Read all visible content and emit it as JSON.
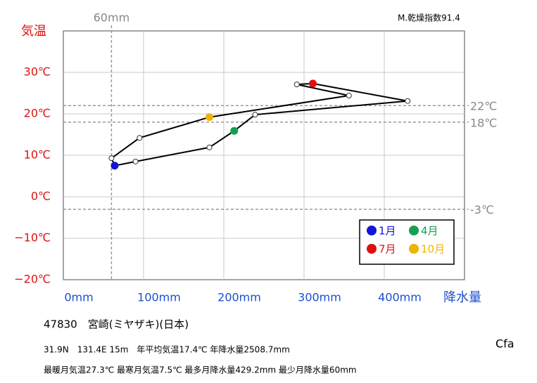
{
  "chart_data": {
    "type": "line",
    "title": "47830　宮崎(ミヤザキ)(日本)",
    "subtitle": "31.9N　131.4E 15m　年平均気温17.4℃ 年降水量2508.7mm",
    "notes": [
      "最暖月気温27.3℃ 最寒月気温7.5℃ 最多月降水量429.2mm 最少月降水量60mm"
    ],
    "index_label": "M.乾燥指数91.4",
    "climate_class": "Cfa",
    "xlabel": "降水量",
    "ylabel": "気温",
    "x": [
      64,
      90,
      182,
      213,
      239,
      429.2,
      311,
      291,
      356,
      182,
      95,
      60
    ],
    "y": [
      7.5,
      8.5,
      11.9,
      15.9,
      19.8,
      23.1,
      27.3,
      27.1,
      24.4,
      19.2,
      14.2,
      9.3
    ],
    "point_colors": [
      "#1414d8",
      "#ffffff",
      "#ffffff",
      "#14a050",
      "#ffffff",
      "#ffffff",
      "#e01010",
      "#ffffff",
      "#ffffff",
      "#f0b400",
      "#ffffff",
      "#ffffff"
    ],
    "line_color": "#000000",
    "xlim": [
      0,
      500
    ],
    "ylim": [
      -20,
      40
    ],
    "xticks": [
      {
        "value": 0,
        "label": "0mm"
      },
      {
        "value": 100,
        "label": "100mm"
      },
      {
        "value": 200,
        "label": "200mm"
      },
      {
        "value": 300,
        "label": "300mm"
      },
      {
        "value": 400,
        "label": "400mm"
      }
    ],
    "yticks": [
      {
        "value": -20,
        "label": "−20℃"
      },
      {
        "value": -10,
        "label": "−10℃"
      },
      {
        "value": 0,
        "label": "0℃"
      },
      {
        "value": 10,
        "label": "10℃"
      },
      {
        "value": 20,
        "label": "20℃"
      },
      {
        "value": 30,
        "label": "30℃"
      }
    ],
    "x_reference": [
      {
        "value": 60,
        "label": "60mm"
      }
    ],
    "y_reference": [
      {
        "value": 22,
        "label": "22℃"
      },
      {
        "value": 18,
        "label": "18℃"
      },
      {
        "value": -3,
        "label": "-3℃"
      }
    ],
    "grid": true,
    "legend_position": "lower right",
    "legend": [
      {
        "label": "1月",
        "color": "#1414d8"
      },
      {
        "label": "4月",
        "color": "#14a050"
      },
      {
        "label": "7月",
        "color": "#e01010"
      },
      {
        "label": "10月",
        "color": "#f0b400"
      }
    ]
  }
}
